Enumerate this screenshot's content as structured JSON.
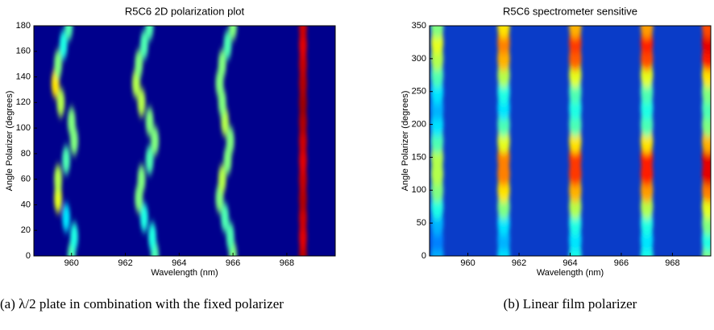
{
  "chart_data": [
    {
      "type": "heatmap",
      "title": "R5C6 2D polarization plot",
      "xlabel": "Wavelength (nm)",
      "ylabel": "Angle Polarizer (degrees)",
      "caption": "(a) λ/2 plate in combination with the fixed polarizer",
      "xlim": [
        958.6,
        969.8
      ],
      "xticks": [
        960,
        962,
        964,
        966,
        968
      ],
      "ylim": [
        0,
        180
      ],
      "yticks": [
        0,
        20,
        40,
        60,
        80,
        100,
        120,
        140,
        160,
        180
      ],
      "background_color": "#00008c",
      "y": [
        0,
        15,
        30,
        45,
        60,
        75,
        90,
        105,
        120,
        135,
        150,
        165,
        180
      ],
      "peaks": [
        {
          "x": [
            960.0,
            960.1,
            959.8,
            959.5,
            959.5,
            959.8,
            960.1,
            960.0,
            959.6,
            959.4,
            959.5,
            959.7,
            959.9
          ],
          "values": [
            0.45,
            0.4,
            0.35,
            0.6,
            0.55,
            0.45,
            0.5,
            0.5,
            0.55,
            0.65,
            0.5,
            0.4,
            0.45
          ]
        },
        {
          "x": [
            963.1,
            963.0,
            962.7,
            962.5,
            962.6,
            962.9,
            963.1,
            962.9,
            962.6,
            962.4,
            962.5,
            962.7,
            962.9
          ],
          "values": [
            0.45,
            0.4,
            0.4,
            0.5,
            0.5,
            0.45,
            0.5,
            0.5,
            0.55,
            0.55,
            0.5,
            0.45,
            0.45
          ]
        },
        {
          "x": [
            966.0,
            965.9,
            965.7,
            965.5,
            965.6,
            965.8,
            965.9,
            965.7,
            965.6,
            965.5,
            965.6,
            965.8,
            966.0
          ],
          "values": [
            0.5,
            0.45,
            0.45,
            0.5,
            0.55,
            0.5,
            0.5,
            0.55,
            0.5,
            0.5,
            0.5,
            0.45,
            0.5
          ]
        },
        {
          "x": [
            968.6,
            968.6,
            968.6,
            968.6,
            968.6,
            968.6,
            968.6,
            968.6,
            968.6,
            968.6,
            968.6,
            968.6,
            968.6
          ],
          "values": [
            0.95,
            0.9,
            0.92,
            0.95,
            0.93,
            0.9,
            0.92,
            0.95,
            0.97,
            0.95,
            0.93,
            0.9,
            0.92
          ]
        }
      ]
    },
    {
      "type": "heatmap",
      "title": "R5C6 spectrometer sensitive",
      "xlabel": "Wavelength (nm)",
      "ylabel": "Angle Polarizer (degrees)",
      "caption": "(b) Linear film polarizer",
      "xlim": [
        958.5,
        969.5
      ],
      "xticks": [
        960,
        962,
        964,
        966,
        968
      ],
      "ylim": [
        0,
        350
      ],
      "yticks": [
        0,
        50,
        100,
        150,
        200,
        250,
        300,
        350
      ],
      "background_color": "#0a3cc8",
      "y": [
        0,
        25,
        50,
        75,
        100,
        125,
        150,
        175,
        200,
        225,
        250,
        275,
        300,
        325,
        350
      ],
      "peaks": [
        {
          "x": [
            958.8,
            958.8,
            958.8,
            958.8,
            958.8,
            958.8,
            958.8,
            958.8,
            958.8,
            958.8,
            958.8,
            958.8,
            958.8,
            958.8,
            958.8
          ],
          "values": [
            0.3,
            0.25,
            0.3,
            0.4,
            0.5,
            0.55,
            0.55,
            0.45,
            0.35,
            0.3,
            0.35,
            0.45,
            0.55,
            0.6,
            0.5
          ]
        },
        {
          "x": [
            961.4,
            961.4,
            961.4,
            961.4,
            961.4,
            961.4,
            961.4,
            961.4,
            961.4,
            961.4,
            961.4,
            961.4,
            961.4,
            961.4,
            961.4
          ],
          "values": [
            0.35,
            0.3,
            0.35,
            0.5,
            0.65,
            0.75,
            0.75,
            0.6,
            0.45,
            0.35,
            0.4,
            0.55,
            0.7,
            0.75,
            0.65
          ]
        },
        {
          "x": [
            964.2,
            964.2,
            964.2,
            964.2,
            964.2,
            964.2,
            964.2,
            964.2,
            964.2,
            964.2,
            964.2,
            964.2,
            964.2,
            964.2,
            964.2
          ],
          "values": [
            0.4,
            0.35,
            0.4,
            0.55,
            0.7,
            0.82,
            0.82,
            0.65,
            0.45,
            0.4,
            0.45,
            0.6,
            0.78,
            0.82,
            0.7
          ]
        },
        {
          "x": [
            967.0,
            967.0,
            967.0,
            967.0,
            967.0,
            967.0,
            967.0,
            967.0,
            967.0,
            967.0,
            967.0,
            967.0,
            967.0,
            967.0,
            967.0
          ],
          "values": [
            0.4,
            0.35,
            0.4,
            0.55,
            0.72,
            0.85,
            0.85,
            0.65,
            0.45,
            0.4,
            0.45,
            0.6,
            0.8,
            0.85,
            0.72
          ]
        },
        {
          "x": [
            969.4,
            969.4,
            969.4,
            969.4,
            969.4,
            969.4,
            969.4,
            969.4,
            969.4,
            969.4,
            969.4,
            969.4,
            969.4,
            969.4,
            969.4
          ],
          "values": [
            0.5,
            0.4,
            0.5,
            0.6,
            0.75,
            0.9,
            0.9,
            0.7,
            0.5,
            0.45,
            0.5,
            0.65,
            0.85,
            0.9,
            0.8
          ]
        }
      ]
    }
  ]
}
